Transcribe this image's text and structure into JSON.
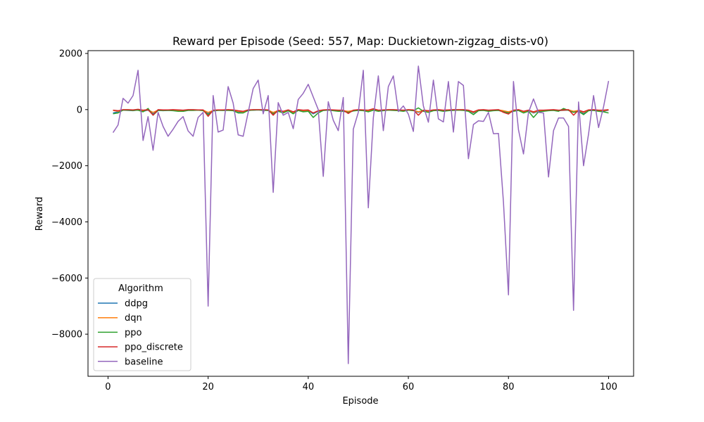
{
  "chart_data": {
    "type": "line",
    "title": "Reward per Episode (Seed: 557, Map: Duckietown-zigzag_dists-v0)",
    "xlabel": "Episode",
    "ylabel": "Reward",
    "xlim": [
      -4,
      105
    ],
    "ylim": [
      -9500,
      2100
    ],
    "xticks": [
      0,
      20,
      40,
      60,
      80,
      100
    ],
    "yticks": [
      2000,
      0,
      -2000,
      -4000,
      -6000,
      -8000
    ],
    "ytick_labels": [
      "2000",
      "0",
      "−2000",
      "−4000",
      "−6000",
      "−8000"
    ],
    "grid": false,
    "legend": {
      "title": "Algorithm",
      "placement": "lower-left"
    },
    "x": [
      1,
      2,
      3,
      4,
      5,
      6,
      7,
      8,
      9,
      10,
      11,
      12,
      13,
      14,
      15,
      16,
      17,
      18,
      19,
      20,
      21,
      22,
      23,
      24,
      25,
      26,
      27,
      28,
      29,
      30,
      31,
      32,
      33,
      34,
      35,
      36,
      37,
      38,
      39,
      40,
      41,
      42,
      43,
      44,
      45,
      46,
      47,
      48,
      49,
      50,
      51,
      52,
      53,
      54,
      55,
      56,
      57,
      58,
      59,
      60,
      61,
      62,
      63,
      64,
      65,
      66,
      67,
      68,
      69,
      70,
      71,
      72,
      73,
      74,
      75,
      76,
      77,
      78,
      79,
      80,
      81,
      82,
      83,
      84,
      85,
      86,
      87,
      88,
      89,
      90,
      91,
      92,
      93,
      94,
      95,
      96,
      97,
      98,
      99,
      100
    ],
    "series": [
      {
        "name": "ddpg",
        "color": "#1f77b4",
        "values": [
          -120,
          -80,
          -20,
          -30,
          -40,
          -10,
          -60,
          -20,
          -150,
          -30,
          -40,
          -30,
          -20,
          -40,
          -60,
          -20,
          -20,
          -10,
          -30,
          -150,
          -40,
          -20,
          -30,
          -20,
          -20,
          -80,
          -100,
          -30,
          -20,
          -10,
          -20,
          -30,
          -120,
          -40,
          -100,
          -30,
          -120,
          -20,
          -60,
          -40,
          -150,
          -60,
          -30,
          -20,
          -30,
          -40,
          -50,
          -80,
          -40,
          -20,
          -30,
          -60,
          -20,
          -40,
          -30,
          -10,
          -20,
          -30,
          -40,
          -20,
          -30,
          -100,
          -40,
          -80,
          -30,
          -20,
          -40,
          -30,
          -20,
          -10,
          -20,
          -40,
          -120,
          -30,
          -20,
          -40,
          -30,
          -20,
          -60,
          -100,
          -40,
          -20,
          -100,
          -40,
          -120,
          -60,
          -40,
          -30,
          -20,
          -40,
          -30,
          -20,
          -80,
          -40,
          -150,
          -30,
          -20,
          -40,
          -60,
          -20
        ]
      },
      {
        "name": "dqn",
        "color": "#ff7f0e",
        "values": [
          -30,
          -60,
          -10,
          -20,
          -30,
          -10,
          -40,
          -10,
          -100,
          -20,
          -30,
          -20,
          -10,
          -30,
          -40,
          -10,
          -10,
          -20,
          -20,
          -100,
          -30,
          -20,
          -20,
          -10,
          -20,
          -60,
          -80,
          -20,
          -10,
          -10,
          -10,
          -20,
          -100,
          -30,
          -80,
          -20,
          -100,
          -10,
          -40,
          -30,
          -120,
          -50,
          -20,
          -10,
          -20,
          -30,
          -40,
          -60,
          -30,
          -10,
          -20,
          -40,
          -10,
          -30,
          -20,
          -10,
          -10,
          -20,
          -30,
          -10,
          -20,
          -80,
          -30,
          -60,
          -20,
          -10,
          -30,
          -20,
          -10,
          -10,
          -10,
          -30,
          -100,
          -20,
          -10,
          -30,
          -20,
          -10,
          -40,
          -80,
          -30,
          -10,
          -80,
          -30,
          -100,
          -40,
          -30,
          -20,
          -10,
          -30,
          -20,
          -10,
          -60,
          -30,
          -100,
          -20,
          -10,
          -30,
          -40,
          -10
        ]
      },
      {
        "name": "ppo",
        "color": "#2ca02c",
        "values": [
          -150,
          -120,
          -20,
          -20,
          -30,
          -20,
          -80,
          40,
          -200,
          -30,
          -30,
          -30,
          -40,
          -60,
          -60,
          -30,
          -30,
          -20,
          -40,
          -180,
          -50,
          -30,
          -30,
          -30,
          -40,
          -120,
          -120,
          -30,
          -20,
          -10,
          -30,
          -30,
          -150,
          -60,
          -120,
          -40,
          -150,
          -30,
          -80,
          -60,
          -280,
          -120,
          -30,
          -20,
          -40,
          -60,
          -60,
          -100,
          -50,
          -30,
          -40,
          -80,
          -20,
          -60,
          -40,
          -20,
          -30,
          -40,
          -60,
          -20,
          -40,
          60,
          -60,
          -100,
          -40,
          -30,
          -60,
          -40,
          -30,
          -20,
          -30,
          -60,
          -180,
          -40,
          -30,
          -60,
          -40,
          -30,
          -80,
          -120,
          -60,
          -30,
          -120,
          -60,
          -280,
          -80,
          -60,
          -40,
          -30,
          -60,
          40,
          -30,
          -100,
          -60,
          -180,
          -40,
          -30,
          -60,
          -80,
          -120
        ]
      },
      {
        "name": "ppo_discrete",
        "color": "#d62728",
        "values": [
          -20,
          -40,
          0,
          0,
          -10,
          10,
          -20,
          0,
          -200,
          0,
          -10,
          -10,
          0,
          -10,
          -20,
          0,
          0,
          -10,
          -10,
          -240,
          -20,
          -10,
          -10,
          0,
          -10,
          -40,
          -60,
          -10,
          0,
          0,
          0,
          -10,
          -200,
          -20,
          -60,
          -10,
          -80,
          0,
          -20,
          -10,
          -120,
          -40,
          -10,
          0,
          -10,
          -20,
          -20,
          -140,
          -20,
          0,
          -10,
          -20,
          30,
          -20,
          -10,
          0,
          0,
          -10,
          -20,
          0,
          -10,
          -200,
          -20,
          -40,
          -10,
          0,
          -20,
          -10,
          0,
          0,
          0,
          -20,
          -80,
          -10,
          0,
          -20,
          -10,
          0,
          -100,
          -160,
          -20,
          0,
          -60,
          -20,
          -80,
          -20,
          -20,
          -10,
          0,
          -20,
          -10,
          0,
          -200,
          -20,
          -80,
          -10,
          0,
          -20,
          -20,
          0
        ]
      },
      {
        "name": "baseline",
        "color": "#9467bd",
        "values": [
          -820,
          -550,
          400,
          230,
          500,
          1400,
          -1100,
          -250,
          -1450,
          -100,
          -600,
          -950,
          -700,
          -420,
          -250,
          -760,
          -950,
          -280,
          -100,
          -7000,
          500,
          -800,
          -730,
          820,
          230,
          -900,
          -950,
          -100,
          750,
          1050,
          -150,
          500,
          -2950,
          250,
          -200,
          -100,
          -680,
          360,
          580,
          900,
          450,
          0,
          -2380,
          280,
          -380,
          -750,
          430,
          -9050,
          -700,
          -100,
          1400,
          -3500,
          -300,
          1200,
          -750,
          820,
          1200,
          -70,
          130,
          -160,
          -780,
          1550,
          130,
          -450,
          1050,
          -330,
          -440,
          1000,
          -800,
          1000,
          860,
          -1750,
          -530,
          -400,
          -420,
          -100,
          -860,
          -850,
          -3300,
          -6600,
          1000,
          -720,
          -1580,
          -100,
          380,
          -100,
          -120,
          -2400,
          -750,
          -300,
          -300,
          -600,
          -7150,
          270,
          -2000,
          -870,
          500,
          -640,
          100,
          1020
        ]
      }
    ]
  }
}
